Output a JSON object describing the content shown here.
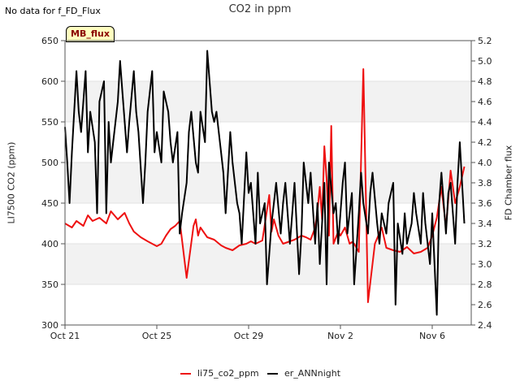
{
  "header": {
    "notice": "No data for f_FD_Flux",
    "title": "CO2 in ppm",
    "badge": "MB_flux"
  },
  "axes": {
    "left_label": "LI7500 CO2 (ppm)",
    "right_label": "FD Chamber flux"
  },
  "legend": [
    {
      "label": "li75_co2_ppm",
      "color": "#ee1111"
    },
    {
      "label": "er_ANNnight",
      "color": "#000000"
    }
  ],
  "chart_data": {
    "type": "line",
    "title": "CO2 in ppm",
    "xlabel": "",
    "ylabel": "LI7500 CO2 (ppm)",
    "y2label": "FD Chamber flux",
    "x_ticks": [
      "Oct 21",
      "Oct 25",
      "Oct 29",
      "Nov 2",
      "Nov 6"
    ],
    "x_tick_days": [
      0,
      4,
      8,
      12,
      16
    ],
    "xlim_days": [
      0,
      17.7
    ],
    "ylim": [
      300,
      650
    ],
    "y_ticks": [
      300,
      350,
      400,
      450,
      500,
      550,
      600,
      650
    ],
    "y2lim": [
      2.4,
      5.2
    ],
    "y2_ticks": [
      2.4,
      2.6,
      2.8,
      3.0,
      3.2,
      3.4,
      3.6,
      3.8,
      4.0,
      4.2,
      4.4,
      4.6,
      4.8,
      5.0,
      5.2
    ],
    "bands": [
      [
        350,
        400
      ],
      [
        450,
        500
      ],
      [
        550,
        600
      ]
    ],
    "grid": true,
    "legend_position": "bottom",
    "series": [
      {
        "name": "li75_co2_ppm",
        "axis": "left",
        "color": "#ee1111",
        "x": [
          0,
          0.3,
          0.5,
          0.8,
          1.0,
          1.2,
          1.5,
          1.8,
          2.0,
          2.3,
          2.6,
          2.8,
          3.0,
          3.3,
          3.6,
          3.8,
          4.0,
          4.2,
          4.4,
          4.6,
          4.8,
          5.0,
          5.3,
          5.6,
          5.7,
          5.8,
          5.9,
          6.2,
          6.5,
          6.8,
          7.0,
          7.3,
          7.6,
          7.9,
          8.1,
          8.3,
          8.6,
          8.9,
          9.0,
          9.1,
          9.2,
          9.3,
          9.4,
          9.5,
          9.7,
          10.0,
          10.3,
          10.5,
          10.7,
          10.9,
          11.0,
          11.1,
          11.2,
          11.3,
          11.4,
          11.5,
          11.6,
          11.7,
          11.9,
          12.0,
          12.2,
          12.4,
          12.5,
          12.6,
          12.8,
          13.0,
          13.2,
          13.5,
          13.8,
          14.0,
          14.3,
          14.6,
          14.9,
          15.2,
          15.5,
          15.8,
          16.0,
          16.2,
          16.4,
          16.6,
          16.8,
          17.0,
          17.2,
          17.4
        ],
        "values": [
          425,
          420,
          428,
          422,
          435,
          428,
          432,
          425,
          440,
          430,
          438,
          425,
          415,
          408,
          403,
          400,
          397,
          400,
          410,
          418,
          422,
          428,
          358,
          422,
          430,
          410,
          420,
          408,
          405,
          398,
          395,
          392,
          398,
          400,
          403,
          400,
          404,
          460,
          415,
          430,
          420,
          410,
          405,
          400,
          402,
          405,
          410,
          408,
          405,
          420,
          440,
          470,
          430,
          520,
          480,
          410,
          545,
          400,
          415,
          410,
          420,
          400,
          402,
          400,
          390,
          615,
          328,
          400,
          420,
          395,
          392,
          390,
          396,
          388,
          390,
          395,
          410,
          432,
          470,
          420,
          490,
          450,
          470,
          495
        ]
      },
      {
        "name": "er_ANNnight",
        "axis": "right",
        "color": "#000000",
        "x": [
          0,
          0.1,
          0.2,
          0.3,
          0.5,
          0.6,
          0.7,
          0.9,
          1.0,
          1.1,
          1.3,
          1.4,
          1.5,
          1.7,
          1.8,
          1.9,
          2.0,
          2.1,
          2.3,
          2.4,
          2.5,
          2.7,
          2.8,
          3.0,
          3.1,
          3.2,
          3.4,
          3.5,
          3.6,
          3.8,
          3.9,
          4.0,
          4.2,
          4.3,
          4.5,
          4.6,
          4.7,
          4.9,
          5.0,
          5.1,
          5.3,
          5.4,
          5.5,
          5.7,
          5.8,
          5.9,
          6.1,
          6.2,
          6.4,
          6.5,
          6.6,
          6.8,
          6.9,
          7.0,
          7.2,
          7.3,
          7.5,
          7.6,
          7.7,
          7.9,
          8.0,
          8.1,
          8.3,
          8.4,
          8.5,
          8.7,
          8.8,
          9.0,
          9.1,
          9.2,
          9.4,
          9.5,
          9.6,
          9.8,
          9.9,
          10.0,
          10.2,
          10.3,
          10.4,
          10.6,
          10.7,
          10.9,
          11.0,
          11.1,
          11.3,
          11.4,
          11.5,
          11.7,
          11.8,
          11.9,
          12.1,
          12.2,
          12.3,
          12.5,
          12.6,
          12.8,
          12.9,
          13.0,
          13.2,
          13.3,
          13.4,
          13.6,
          13.7,
          13.8,
          14.0,
          14.1,
          14.3,
          14.4,
          14.5,
          14.7,
          14.8,
          14.9,
          15.1,
          15.2,
          15.3,
          15.5,
          15.6,
          15.7,
          15.9,
          16.0,
          16.2,
          16.3,
          16.4,
          16.6,
          16.7,
          16.8,
          17.0,
          17.1,
          17.2,
          17.4
        ],
        "values": [
          4.35,
          4.0,
          3.6,
          4.1,
          4.9,
          4.5,
          4.3,
          4.9,
          4.1,
          4.5,
          4.2,
          3.5,
          4.6,
          4.8,
          3.5,
          4.4,
          4.0,
          4.2,
          4.6,
          5.0,
          4.7,
          4.1,
          4.4,
          4.9,
          4.5,
          4.3,
          3.6,
          4.0,
          4.5,
          4.9,
          4.1,
          4.3,
          4.0,
          4.7,
          4.5,
          4.2,
          4.0,
          4.3,
          3.3,
          3.5,
          3.8,
          4.3,
          4.5,
          4.0,
          3.9,
          4.5,
          4.2,
          5.1,
          4.5,
          4.4,
          4.5,
          4.1,
          3.9,
          3.5,
          4.3,
          4.0,
          3.6,
          3.5,
          3.2,
          4.1,
          3.7,
          3.8,
          3.2,
          3.9,
          3.4,
          3.6,
          2.8,
          3.4,
          3.6,
          3.8,
          3.3,
          3.6,
          3.8,
          3.2,
          3.5,
          3.8,
          2.9,
          3.3,
          4.0,
          3.6,
          3.9,
          3.2,
          3.6,
          3.0,
          3.8,
          2.8,
          4.0,
          3.5,
          3.6,
          3.2,
          3.8,
          4.0,
          3.3,
          3.7,
          2.8,
          3.5,
          3.9,
          3.6,
          3.3,
          3.7,
          3.9,
          3.4,
          3.2,
          3.5,
          3.3,
          3.6,
          3.8,
          2.6,
          3.4,
          3.1,
          3.5,
          3.2,
          3.4,
          3.7,
          3.5,
          3.2,
          3.7,
          3.4,
          3.0,
          3.5,
          2.5,
          3.6,
          3.9,
          3.3,
          3.7,
          3.8,
          3.2,
          3.8,
          4.2,
          3.4
        ]
      }
    ]
  }
}
